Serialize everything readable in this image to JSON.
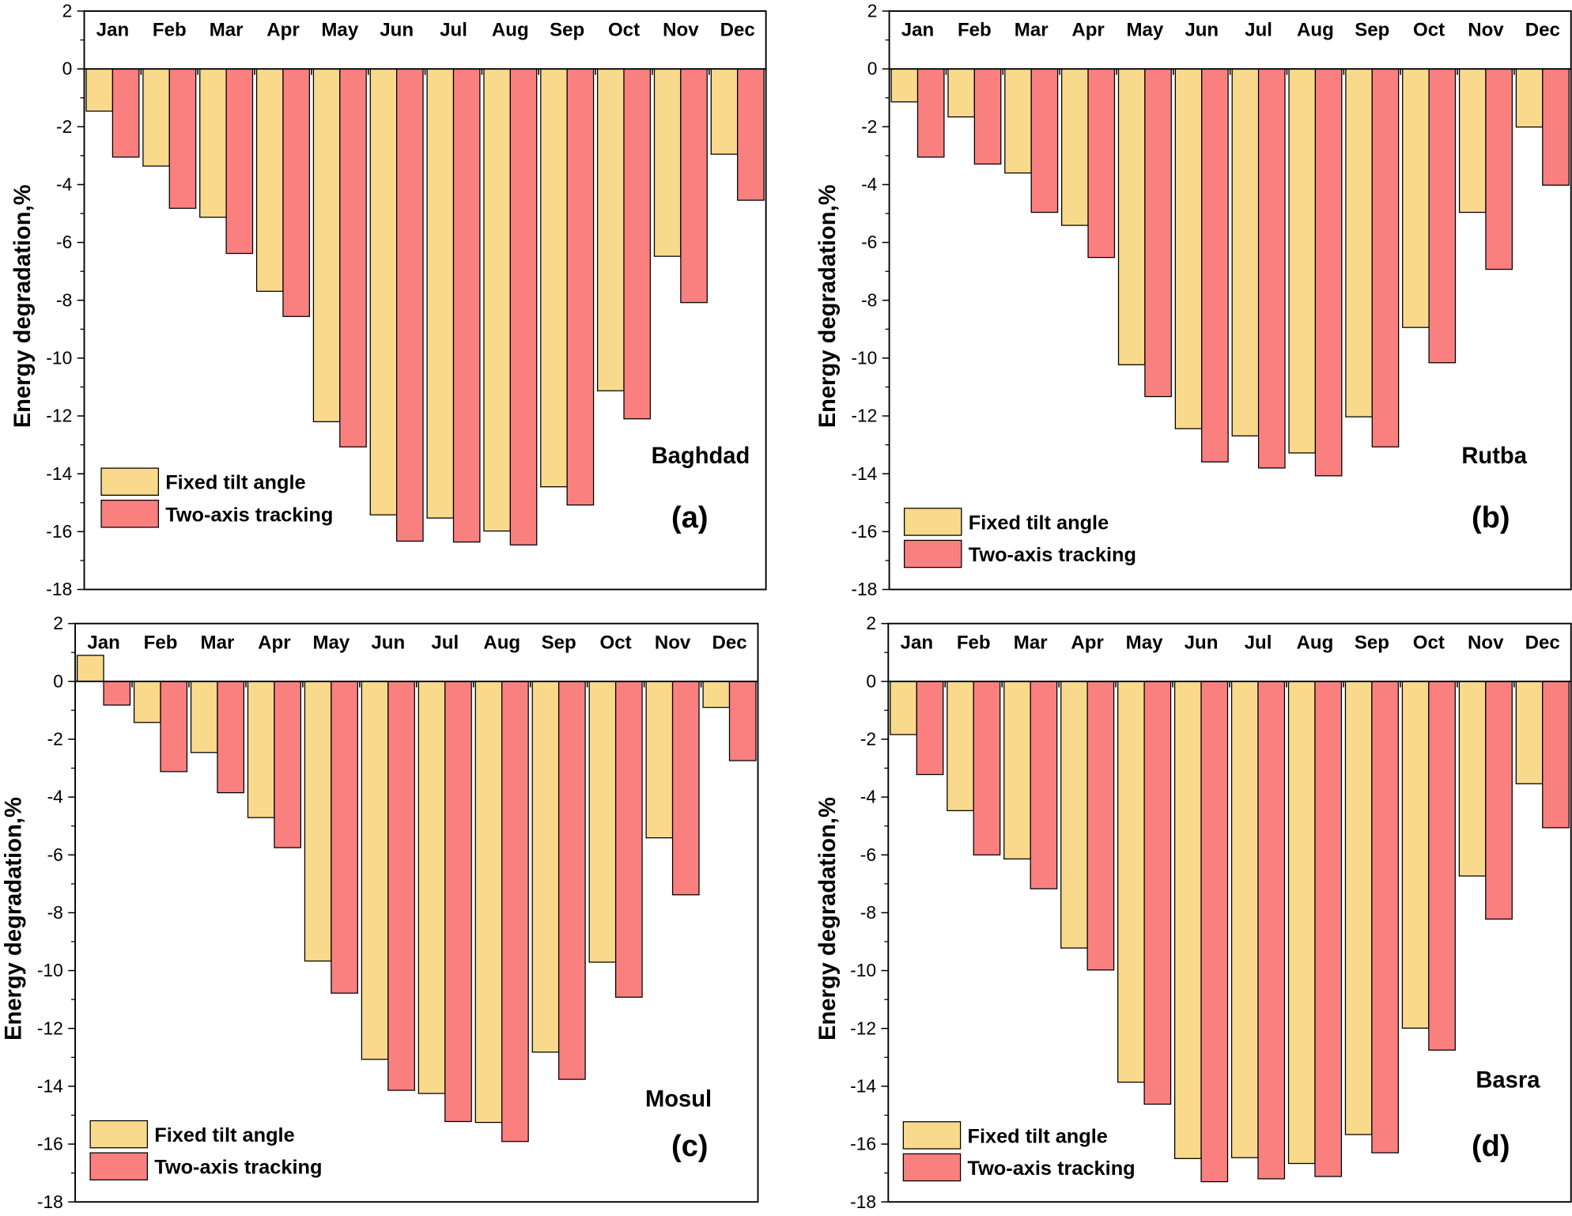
{
  "chart_data": [
    {
      "type": "bar",
      "panel_label": "(a)",
      "annotation": "Baghdad",
      "ylabel": "Energy degradation,%",
      "ylim": [
        -18,
        2
      ],
      "yticks": [
        2,
        0,
        -2,
        -4,
        -6,
        -8,
        -10,
        -12,
        -14,
        -16,
        -18
      ],
      "categories": [
        "Jan",
        "Feb",
        "Mar",
        "Apr",
        "May",
        "Jun",
        "Jul",
        "Aug",
        "Sep",
        "Oct",
        "Nov",
        "Dec"
      ],
      "series": [
        {
          "name": "Fixed tilt angle",
          "color": "#F9D98C",
          "values": [
            -1.46,
            -3.36,
            -5.13,
            -7.69,
            -12.2,
            -15.42,
            -15.53,
            -15.98,
            -14.45,
            -11.13,
            -6.48,
            -2.95
          ]
        },
        {
          "name": "Two-axis tracking",
          "color": "#FA8080",
          "values": [
            -3.05,
            -4.82,
            -6.38,
            -8.56,
            -13.07,
            -16.33,
            -16.36,
            -16.46,
            -15.08,
            -12.1,
            -8.08,
            -4.54
          ]
        }
      ],
      "legend": "bottom-left",
      "grid": false
    },
    {
      "type": "bar",
      "panel_label": "(b)",
      "annotation": "Rutba",
      "ylabel": "Energy degradation,%",
      "ylim": [
        -18,
        2
      ],
      "yticks": [
        2,
        0,
        -2,
        -4,
        -6,
        -8,
        -10,
        -12,
        -14,
        -16,
        -18
      ],
      "categories": [
        "Jan",
        "Feb",
        "Mar",
        "Apr",
        "May",
        "Jun",
        "Jul",
        "Aug",
        "Sep",
        "Oct",
        "Nov",
        "Dec"
      ],
      "series": [
        {
          "name": "Fixed tilt angle",
          "color": "#F9D98C",
          "values": [
            -1.14,
            -1.66,
            -3.6,
            -5.41,
            -10.23,
            -12.44,
            -12.69,
            -13.28,
            -12.03,
            -8.94,
            -4.96,
            -2.01
          ]
        },
        {
          "name": "Two-axis tracking",
          "color": "#FA8080",
          "values": [
            -3.05,
            -3.29,
            -4.96,
            -6.52,
            -11.33,
            -13.59,
            -13.8,
            -14.07,
            -13.07,
            -10.16,
            -6.93,
            -4.02
          ]
        }
      ],
      "legend": "bottom-left",
      "grid": false
    },
    {
      "type": "bar",
      "panel_label": "(c)",
      "annotation": "Mosul",
      "ylabel": "Energy degradation,%",
      "ylim": [
        -18,
        2
      ],
      "yticks": [
        2,
        0,
        -2,
        -4,
        -6,
        -8,
        -10,
        -12,
        -14,
        -16,
        -18
      ],
      "categories": [
        "Jan",
        "Feb",
        "Mar",
        "Apr",
        "May",
        "Jun",
        "Jul",
        "Aug",
        "Sep",
        "Oct",
        "Nov",
        "Dec"
      ],
      "series": [
        {
          "name": "Fixed tilt angle",
          "color": "#F9D98C",
          "values": [
            0.9,
            -1.42,
            -2.46,
            -4.71,
            -9.67,
            -13.07,
            -14.25,
            -15.25,
            -12.82,
            -9.71,
            -5.41,
            -0.9
          ]
        },
        {
          "name": "Two-axis tracking",
          "color": "#FA8080",
          "values": [
            -0.82,
            -3.12,
            -3.85,
            -5.75,
            -10.78,
            -14.14,
            -15.22,
            -15.91,
            -13.76,
            -10.92,
            -7.38,
            -2.74
          ]
        }
      ],
      "legend": "bottom-left",
      "grid": false
    },
    {
      "type": "bar",
      "panel_label": "(d)",
      "annotation": "Basra",
      "ylabel": "Energy degradation,%",
      "ylim": [
        -18,
        2
      ],
      "yticks": [
        2,
        0,
        -2,
        -4,
        -6,
        -8,
        -10,
        -12,
        -14,
        -16,
        -18
      ],
      "categories": [
        "Jan",
        "Feb",
        "Mar",
        "Apr",
        "May",
        "Jun",
        "Jul",
        "Aug",
        "Sep",
        "Oct",
        "Nov",
        "Dec"
      ],
      "series": [
        {
          "name": "Fixed tilt angle",
          "color": "#F9D98C",
          "values": [
            -1.84,
            -4.47,
            -6.14,
            -9.22,
            -13.86,
            -16.5,
            -16.47,
            -16.67,
            -15.67,
            -11.99,
            -6.73,
            -3.54
          ]
        },
        {
          "name": "Two-axis tracking",
          "color": "#FA8080",
          "values": [
            -3.22,
            -6.0,
            -7.17,
            -9.98,
            -14.62,
            -17.3,
            -17.2,
            -17.12,
            -16.3,
            -12.75,
            -8.22,
            -5.06
          ]
        }
      ],
      "legend": "bottom-left",
      "grid": false
    }
  ]
}
